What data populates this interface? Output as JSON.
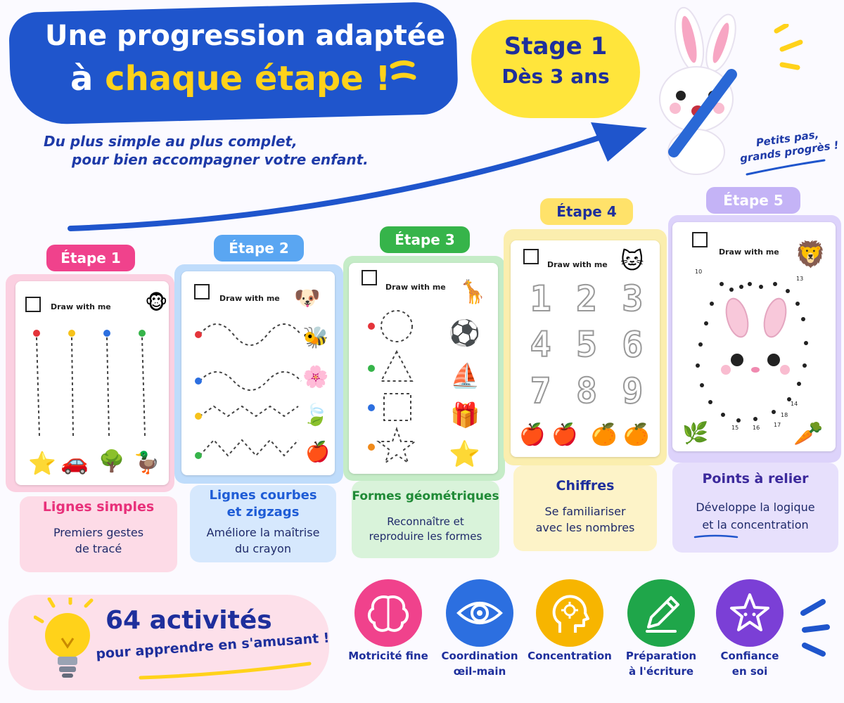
{
  "header": {
    "title_line1": "Une progression adaptée",
    "title_line2_pre": "à ",
    "title_line2_highlight": "chaque étape !",
    "subtitle_line1": "Du plus simple au plus complet,",
    "subtitle_line2": "pour bien accompagner votre enfant."
  },
  "stage": {
    "line1": "Stage 1",
    "line2": "Dès 3 ans"
  },
  "mascot_note": {
    "line1": "Petits pas,",
    "line2": "grands progrès !"
  },
  "draw_label": "Draw with me",
  "steps": [
    {
      "tab": "Étape 1",
      "title": "Lignes simples",
      "desc1": "Premiers gestes",
      "desc2": "de tracé"
    },
    {
      "tab": "Étape 2",
      "title1": "Lignes courbes",
      "title2": "et zigzags",
      "desc1": "Améliore la maîtrise",
      "desc2": "du crayon"
    },
    {
      "tab": "Étape 3",
      "title": "Formes géométriques",
      "desc1": "Reconnaître et",
      "desc2": "reproduire les formes"
    },
    {
      "tab": "Étape 4",
      "title": "Chiffres",
      "desc1": "Se familiariser",
      "desc2": "avec les nombres"
    },
    {
      "tab": "Étape 5",
      "title": "Points à relier",
      "desc1": "Développe la logique",
      "desc2": "et la concentration"
    }
  ],
  "digits": [
    "1",
    "2",
    "3",
    "4",
    "5",
    "6",
    "7",
    "8",
    "9"
  ],
  "dot_numbers": [
    "10",
    "13",
    "14",
    "15",
    "16",
    "17",
    "18"
  ],
  "activities": {
    "count": "64 activités",
    "tagline": "pour apprendre en s'amusant !"
  },
  "skills": [
    {
      "label1": "Motricité fine",
      "label2": "",
      "icon": "brain-icon",
      "color": "#f0428c"
    },
    {
      "label1": "Coordination",
      "label2": "œil-main",
      "icon": "eye-icon",
      "color": "#2c6fe0"
    },
    {
      "label1": "Concentration",
      "label2": "",
      "icon": "head-gear-icon",
      "color": "#f7b500"
    },
    {
      "label1": "Préparation",
      "label2": "à l'écriture",
      "icon": "pencil-icon",
      "color": "#1fa64a"
    },
    {
      "label1": "Confiance",
      "label2": "en soi",
      "icon": "star-icon",
      "color": "#7b3fd6"
    }
  ],
  "colors": {
    "step1": "#f0428c",
    "step2": "#3e8df0",
    "step3": "#36b44a",
    "step4": "#f6d65a",
    "step5": "#b9a6f4",
    "banner": "#1f55cc",
    "cloud": "#ffe53b",
    "accent_yellow": "#ffd21a"
  }
}
